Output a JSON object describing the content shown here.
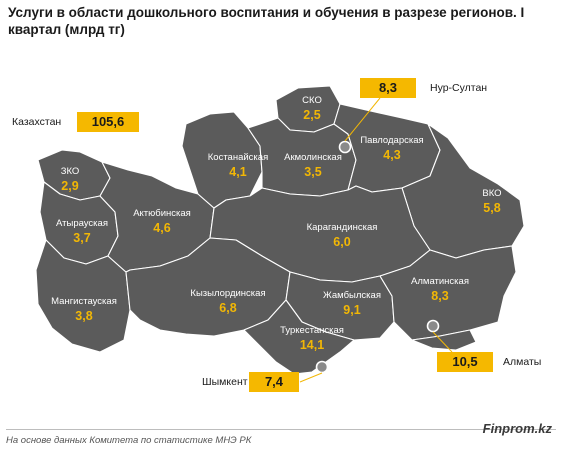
{
  "title": "Услуги в области дошкольного воспитания и обучения в разрезе регионов. I квартал (млрд тг)",
  "total": {
    "label": "Казахстан",
    "value": "105,6"
  },
  "regions": [
    {
      "id": "zko",
      "name": "ЗКО",
      "value": "2,9"
    },
    {
      "id": "atyrau",
      "name": "Атырауская",
      "value": "3,7"
    },
    {
      "id": "mangystau",
      "name": "Мангистауская",
      "value": "3,8"
    },
    {
      "id": "aktobe",
      "name": "Актюбинская",
      "value": "4,6"
    },
    {
      "id": "kostanay",
      "name": "Костанайская",
      "value": "4,1"
    },
    {
      "id": "sko",
      "name": "СКО",
      "value": "2,5"
    },
    {
      "id": "akmola",
      "name": "Акмолинская",
      "value": "3,5"
    },
    {
      "id": "pavlodar",
      "name": "Павлодарская",
      "value": "4,3"
    },
    {
      "id": "vko",
      "name": "ВКО",
      "value": "5,8"
    },
    {
      "id": "karaganda",
      "name": "Карагандинская",
      "value": "6,0"
    },
    {
      "id": "kyzylorda",
      "name": "Кызылординская",
      "value": "6,8"
    },
    {
      "id": "zhambyl",
      "name": "Жамбылская",
      "value": "9,1"
    },
    {
      "id": "almaty_reg",
      "name": "Алматинская",
      "value": "8,3"
    },
    {
      "id": "turkestan",
      "name": "Туркестанская",
      "value": "14,1"
    }
  ],
  "cities": [
    {
      "id": "nursultan",
      "name": "Нур-Султан",
      "value": "8,3"
    },
    {
      "id": "almaty",
      "name": "Алматы",
      "value": "10,5"
    },
    {
      "id": "shymkent",
      "name": "Шымкент",
      "value": "7,4"
    }
  ],
  "source": "На основе данных Комитета по статистике МНЭ РК",
  "brand": "Finprom.kz",
  "colors": {
    "region_fill": "#5b5b5b",
    "value_text": "#f2b705",
    "box_fill": "#f5b800",
    "border": "#ffffff"
  }
}
